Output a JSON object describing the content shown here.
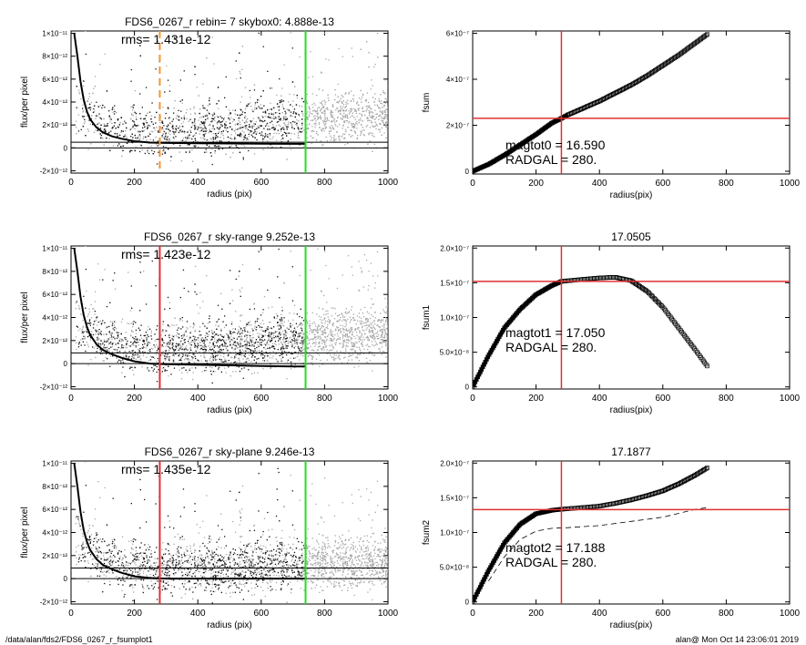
{
  "footer": {
    "left": "/data/alan/fds2/FDS6_0267_r_fsumplot1",
    "right": "alan@  Mon Oct 14 23:06:01 2019"
  },
  "colors": {
    "scatter_dark": "#111111",
    "scatter_light": "#a8a8a8",
    "profile": "#000000",
    "green_line": "#22dd22",
    "red_line": "#e03030",
    "orange_line": "#f29530"
  },
  "chart_data": [
    {
      "id": "flux-top",
      "type": "scatter",
      "title": "FDS6_0267_r rebin= 7    skybox0:  4.888e-13",
      "annotation": "rms= 1.431e-12",
      "xlabel": "radius (pix)",
      "ylabel": "flux/per pixel",
      "xlim": [
        0,
        1000
      ],
      "ylim": [
        -2.2e-12,
        1.02e-11
      ],
      "xticks": [
        0,
        200,
        400,
        600,
        800,
        1000
      ],
      "xtick_labels": [
        "0",
        "200",
        "400",
        "600",
        "800",
        "1000"
      ],
      "yticks": [
        -2e-12,
        0,
        2e-12,
        4e-12,
        6e-12,
        8e-12,
        1e-11
      ],
      "ytick_labels": [
        "-2×10⁻¹²",
        "0",
        "2×10⁻¹²",
        "4×10⁻¹²",
        "6×10⁻¹²",
        "8×10⁻¹²",
        "1×10⁻¹¹"
      ],
      "vlines": [
        {
          "x": 280,
          "color": "orange",
          "dash": true
        },
        {
          "x": 740,
          "color": "green"
        }
      ],
      "hlines": [
        0,
        4.888e-13
      ],
      "profile": [
        [
          10,
          1e-11
        ],
        [
          20,
          8e-12
        ],
        [
          30,
          5.8e-12
        ],
        [
          40,
          4.2e-12
        ],
        [
          50,
          3.2e-12
        ],
        [
          60,
          2.5e-12
        ],
        [
          80,
          1.8e-12
        ],
        [
          100,
          1.35e-12
        ],
        [
          130,
          1e-12
        ],
        [
          160,
          8e-13
        ],
        [
          200,
          5.8e-13
        ],
        [
          250,
          4.6e-13
        ],
        [
          300,
          4.3e-13
        ],
        [
          400,
          4e-13
        ],
        [
          500,
          3.8e-13
        ],
        [
          600,
          3.6e-13
        ],
        [
          700,
          3.5e-13
        ],
        [
          740,
          3.5e-13
        ]
      ],
      "scatter_trend": [
        [
          20,
          3.5e-12
        ],
        [
          100,
          1.9e-12
        ],
        [
          200,
          1.4e-12
        ],
        [
          400,
          1.6e-12
        ],
        [
          600,
          2.1e-12
        ],
        [
          800,
          2.7e-12
        ],
        [
          1000,
          3.1e-12
        ]
      ]
    },
    {
      "id": "flux-mid",
      "type": "scatter",
      "title": "FDS6_0267_r sky-range  9.252e-13",
      "annotation": "rms= 1.423e-12",
      "xlabel": "radius (pix)",
      "ylabel": "flux/per pixel",
      "xlim": [
        0,
        1000
      ],
      "ylim": [
        -2.2e-12,
        1.02e-11
      ],
      "xticks": [
        0,
        200,
        400,
        600,
        800,
        1000
      ],
      "xtick_labels": [
        "0",
        "200",
        "400",
        "600",
        "800",
        "1000"
      ],
      "yticks": [
        -2e-12,
        0,
        2e-12,
        4e-12,
        6e-12,
        8e-12,
        1e-11
      ],
      "ytick_labels": [
        "-2×10⁻¹²",
        "0",
        "2×10⁻¹²",
        "4×10⁻¹²",
        "6×10⁻¹²",
        "8×10⁻¹²",
        "1×10⁻¹¹"
      ],
      "vlines": [
        {
          "x": 280,
          "color": "red"
        },
        {
          "x": 740,
          "color": "green"
        }
      ],
      "hlines": [
        0,
        9.252e-13
      ],
      "profile": [
        [
          10,
          1e-11
        ],
        [
          20,
          8e-12
        ],
        [
          30,
          5.8e-12
        ],
        [
          40,
          4.2e-12
        ],
        [
          50,
          3.2e-12
        ],
        [
          60,
          2.5e-12
        ],
        [
          80,
          1.7e-12
        ],
        [
          100,
          1.2e-12
        ],
        [
          130,
          8e-13
        ],
        [
          160,
          5e-13
        ],
        [
          200,
          2e-13
        ],
        [
          250,
          0
        ],
        [
          300,
          -5e-14
        ],
        [
          400,
          -1e-13
        ],
        [
          500,
          -1.5e-13
        ],
        [
          600,
          -2e-13
        ],
        [
          700,
          -2.5e-13
        ],
        [
          740,
          -2.5e-13
        ]
      ],
      "scatter_trend": [
        [
          20,
          3.5e-12
        ],
        [
          100,
          1.9e-12
        ],
        [
          200,
          1.3e-12
        ],
        [
          400,
          1.4e-12
        ],
        [
          600,
          1.8e-12
        ],
        [
          800,
          2.4e-12
        ],
        [
          1000,
          2.8e-12
        ]
      ]
    },
    {
      "id": "flux-bot",
      "type": "scatter",
      "title": "FDS6_0267_r sky-plane  9.246e-13",
      "annotation": "rms= 1.435e-12",
      "xlabel": "radius (pix)",
      "ylabel": "flux/per pixel",
      "xlim": [
        0,
        1000
      ],
      "ylim": [
        -2.2e-12,
        1.02e-11
      ],
      "xticks": [
        0,
        200,
        400,
        600,
        800,
        1000
      ],
      "xtick_labels": [
        "0",
        "200",
        "400",
        "600",
        "800",
        "1000"
      ],
      "yticks": [
        -2e-12,
        0,
        2e-12,
        4e-12,
        6e-12,
        8e-12,
        1e-11
      ],
      "ytick_labels": [
        "-2×10⁻¹²",
        "0",
        "2×10⁻¹²",
        "4×10⁻¹²",
        "6×10⁻¹²",
        "8×10⁻¹²",
        "1×10⁻¹¹"
      ],
      "vlines": [
        {
          "x": 280,
          "color": "red"
        },
        {
          "x": 740,
          "color": "green"
        }
      ],
      "hlines": [
        0,
        9.246e-13
      ],
      "profile": [
        [
          10,
          1e-11
        ],
        [
          20,
          8e-12
        ],
        [
          30,
          5.8e-12
        ],
        [
          40,
          4.2e-12
        ],
        [
          50,
          3.2e-12
        ],
        [
          60,
          2.5e-12
        ],
        [
          80,
          1.7e-12
        ],
        [
          100,
          1.2e-12
        ],
        [
          130,
          8e-13
        ],
        [
          160,
          5e-13
        ],
        [
          200,
          2e-13
        ],
        [
          250,
          5e-14
        ],
        [
          300,
          0
        ],
        [
          400,
          0
        ],
        [
          500,
          0
        ],
        [
          600,
          0
        ],
        [
          700,
          0
        ],
        [
          740,
          0
        ]
      ],
      "scatter_trend": [
        [
          20,
          3.5e-12
        ],
        [
          100,
          1.6e-12
        ],
        [
          200,
          1.1e-12
        ],
        [
          400,
          1e-12
        ],
        [
          600,
          1.2e-12
        ],
        [
          800,
          1.4e-12
        ],
        [
          1000,
          1.5e-12
        ]
      ]
    },
    {
      "id": "fsum",
      "type": "line",
      "title": "",
      "xlabel": "radius(pix)",
      "ylabel": "fsum",
      "xlim": [
        0,
        1000
      ],
      "ylim": [
        -1.2e-08,
        6.1e-07
      ],
      "xticks": [
        0,
        200,
        400,
        600,
        800,
        1000
      ],
      "xtick_labels": [
        "0",
        "200",
        "400",
        "600",
        "800",
        "1000"
      ],
      "yticks": [
        0,
        2e-07,
        4e-07,
        6e-07
      ],
      "ytick_labels": [
        "0",
        "2×10⁻⁷",
        "4×10⁻⁷",
        "6×10⁻⁷"
      ],
      "vline": 280,
      "hline": 2.3e-07,
      "annotations": [
        "magtot0 = 16.590",
        "RADGAL =    280."
      ],
      "curve": [
        [
          0,
          0
        ],
        [
          50,
          3e-08
        ],
        [
          100,
          7e-08
        ],
        [
          150,
          1.15e-07
        ],
        [
          200,
          1.6e-07
        ],
        [
          250,
          2.1e-07
        ],
        [
          280,
          2.3e-07
        ],
        [
          300,
          2.45e-07
        ],
        [
          350,
          2.75e-07
        ],
        [
          400,
          3.05e-07
        ],
        [
          450,
          3.4e-07
        ],
        [
          500,
          3.75e-07
        ],
        [
          550,
          4.15e-07
        ],
        [
          600,
          4.6e-07
        ],
        [
          650,
          5.05e-07
        ],
        [
          700,
          5.55e-07
        ],
        [
          740,
          5.95e-07
        ]
      ],
      "curve_dashed": []
    },
    {
      "id": "fsum1",
      "type": "line",
      "title": "17.0505",
      "xlabel": "radius(pix)",
      "ylabel": "fsum1",
      "xlim": [
        0,
        1000
      ],
      "ylim": [
        -3e-09,
        2.03e-07
      ],
      "xticks": [
        0,
        200,
        400,
        600,
        800,
        1000
      ],
      "xtick_labels": [
        "0",
        "200",
        "400",
        "600",
        "800",
        "1000"
      ],
      "yticks": [
        0,
        5e-08,
        1e-07,
        1.5e-07,
        2e-07
      ],
      "ytick_labels": [
        "0",
        "5.0×10⁻⁸",
        "1.0×10⁻⁷",
        "1.5×10⁻⁷",
        "2.0×10⁻⁷"
      ],
      "vline": 280,
      "hline": 1.52e-07,
      "annotations": [
        "magtot1 = 17.050",
        "RADGAL =    280."
      ],
      "curve": [
        [
          0,
          0
        ],
        [
          50,
          4.5e-08
        ],
        [
          100,
          8.5e-08
        ],
        [
          150,
          1.12e-07
        ],
        [
          200,
          1.33e-07
        ],
        [
          250,
          1.46e-07
        ],
        [
          280,
          1.52e-07
        ],
        [
          350,
          1.55e-07
        ],
        [
          400,
          1.57e-07
        ],
        [
          450,
          1.58e-07
        ],
        [
          500,
          1.53e-07
        ],
        [
          550,
          1.38e-07
        ],
        [
          600,
          1.15e-07
        ],
        [
          650,
          8.5e-08
        ],
        [
          700,
          5.5e-08
        ],
        [
          740,
          3e-08
        ]
      ],
      "curve_dashed": []
    },
    {
      "id": "fsum2",
      "type": "line",
      "title": "17.1877",
      "xlabel": "radius(pix)",
      "ylabel": "fsum2",
      "xlim": [
        0,
        1000
      ],
      "ylim": [
        -3e-09,
        2.03e-07
      ],
      "xticks": [
        0,
        200,
        400,
        600,
        800,
        1000
      ],
      "xtick_labels": [
        "0",
        "200",
        "400",
        "600",
        "800",
        "1000"
      ],
      "yticks": [
        0,
        5e-08,
        1e-07,
        1.5e-07,
        2e-07
      ],
      "ytick_labels": [
        "0",
        "5.0×10⁻⁸",
        "1.0×10⁻⁷",
        "1.5×10⁻⁷",
        "2.0×10⁻⁷"
      ],
      "vline": 280,
      "hline": 1.33e-07,
      "annotations": [
        "magtot2 = 17.188",
        "RADGAL =    280."
      ],
      "curve": [
        [
          0,
          0
        ],
        [
          50,
          4.5e-08
        ],
        [
          100,
          8.5e-08
        ],
        [
          150,
          1.12e-07
        ],
        [
          200,
          1.27e-07
        ],
        [
          250,
          1.32e-07
        ],
        [
          280,
          1.335e-07
        ],
        [
          350,
          1.36e-07
        ],
        [
          400,
          1.38e-07
        ],
        [
          450,
          1.42e-07
        ],
        [
          500,
          1.47e-07
        ],
        [
          550,
          1.53e-07
        ],
        [
          600,
          1.6e-07
        ],
        [
          650,
          1.7e-07
        ],
        [
          700,
          1.82e-07
        ],
        [
          740,
          1.93e-07
        ]
      ],
      "curve_dashed": [
        [
          50,
          3e-08
        ],
        [
          100,
          6.5e-08
        ],
        [
          150,
          9e-08
        ],
        [
          200,
          1.02e-07
        ],
        [
          250,
          1.06e-07
        ],
        [
          300,
          1.07e-07
        ],
        [
          400,
          1.1e-07
        ],
        [
          500,
          1.16e-07
        ],
        [
          600,
          1.22e-07
        ],
        [
          700,
          1.33e-07
        ],
        [
          740,
          1.36e-07
        ]
      ]
    }
  ]
}
